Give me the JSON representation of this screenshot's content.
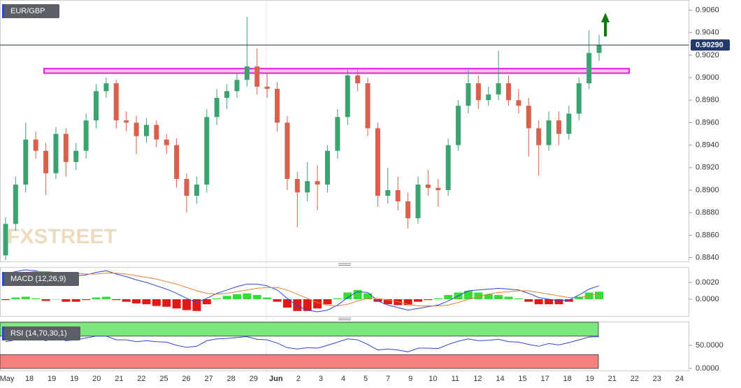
{
  "chart_data": [
    {
      "type": "candlestick",
      "title": "EUR/GBP",
      "watermark": "FXSTREET",
      "up_color": "#3aa36f",
      "down_color": "#d9604c",
      "ylim": [
        0.8836,
        0.9069
      ],
      "yticks": [
        {
          "value": 0.906,
          "label": "0.9060"
        },
        {
          "value": 0.904,
          "label": "0.9040"
        },
        {
          "value": 0.902,
          "label": "0.9020"
        },
        {
          "value": 0.9,
          "label": "0.9000"
        },
        {
          "value": 0.898,
          "label": "0.8980"
        },
        {
          "value": 0.896,
          "label": "0.8960"
        },
        {
          "value": 0.894,
          "label": "0.8940"
        },
        {
          "value": 0.892,
          "label": "0.8920"
        },
        {
          "value": 0.89,
          "label": "0.8900"
        },
        {
          "value": 0.888,
          "label": "0.8880"
        },
        {
          "value": 0.886,
          "label": "0.8860"
        },
        {
          "value": 0.884,
          "label": "0.8840"
        }
      ],
      "xtick_labels": [
        "May",
        "18",
        "19",
        "19",
        "20",
        "21",
        "22",
        "25",
        "26",
        "27",
        "28",
        "29",
        "Jun",
        "2",
        "3",
        "4",
        "5",
        "7",
        "9",
        "10",
        "11",
        "12",
        "14",
        "15",
        "17",
        "18",
        "19",
        "21",
        "22",
        "23",
        "24"
      ],
      "last_price": {
        "value": 0.9029,
        "label": "0.90290"
      },
      "resistance_zone": [
        0.9004,
        0.9008
      ],
      "open": [
        0.8842,
        0.887,
        0.8905,
        0.8945,
        0.8935,
        0.8915,
        0.895,
        0.8925,
        0.8935,
        0.8962,
        0.8988,
        0.8995,
        0.8962,
        0.896,
        0.8948,
        0.8958,
        0.8945,
        0.894,
        0.891,
        0.8895,
        0.8905,
        0.8965,
        0.8982,
        0.8988,
        0.8998,
        0.901,
        0.8992,
        0.899,
        0.896,
        0.891,
        0.8898,
        0.8908,
        0.8905,
        0.8935,
        0.8965,
        0.9002,
        0.8995,
        0.8955,
        0.8895,
        0.89,
        0.889,
        0.8875,
        0.8905,
        0.8902,
        0.89,
        0.894,
        0.8975,
        0.8995,
        0.898,
        0.8985,
        0.8995,
        0.898,
        0.8975,
        0.8955,
        0.894,
        0.8962,
        0.895,
        0.8968,
        0.8995,
        0.9022
      ],
      "high": [
        0.8876,
        0.8912,
        0.896,
        0.8952,
        0.8942,
        0.8956,
        0.8955,
        0.8942,
        0.8968,
        0.8994,
        0.9,
        0.8998,
        0.897,
        0.8966,
        0.8964,
        0.8962,
        0.895,
        0.8946,
        0.8915,
        0.8912,
        0.8972,
        0.899,
        0.8994,
        0.9004,
        0.9054,
        0.9026,
        0.9004,
        0.8996,
        0.8966,
        0.8916,
        0.8925,
        0.8922,
        0.894,
        0.8972,
        0.9008,
        0.9008,
        0.9,
        0.896,
        0.892,
        0.8912,
        0.8898,
        0.8912,
        0.8918,
        0.891,
        0.8946,
        0.898,
        0.9008,
        0.9002,
        0.8992,
        0.9024,
        0.9002,
        0.899,
        0.8982,
        0.8962,
        0.897,
        0.897,
        0.8975,
        0.9,
        0.9042,
        0.9038
      ],
      "low": [
        0.8838,
        0.8864,
        0.8898,
        0.8928,
        0.8896,
        0.891,
        0.8912,
        0.8918,
        0.8928,
        0.8955,
        0.8982,
        0.8955,
        0.8952,
        0.8932,
        0.8942,
        0.8938,
        0.8932,
        0.8902,
        0.888,
        0.8888,
        0.8898,
        0.8958,
        0.8972,
        0.8982,
        0.8992,
        0.8985,
        0.8982,
        0.8952,
        0.89,
        0.8867,
        0.889,
        0.8882,
        0.8898,
        0.8928,
        0.8958,
        0.8988,
        0.8948,
        0.8885,
        0.8888,
        0.8882,
        0.8866,
        0.887,
        0.8895,
        0.8885,
        0.8895,
        0.8935,
        0.8968,
        0.8972,
        0.8975,
        0.898,
        0.8975,
        0.8968,
        0.893,
        0.8913,
        0.8935,
        0.894,
        0.8945,
        0.8962,
        0.899,
        0.9015
      ],
      "close": [
        0.887,
        0.8905,
        0.8945,
        0.8935,
        0.8915,
        0.895,
        0.8925,
        0.8935,
        0.8962,
        0.8988,
        0.8995,
        0.8962,
        0.896,
        0.8948,
        0.8958,
        0.8945,
        0.894,
        0.891,
        0.8895,
        0.8905,
        0.8965,
        0.8982,
        0.8988,
        0.8998,
        0.901,
        0.8992,
        0.899,
        0.896,
        0.891,
        0.8898,
        0.8908,
        0.8905,
        0.8935,
        0.8965,
        0.9002,
        0.8995,
        0.8955,
        0.8895,
        0.89,
        0.889,
        0.8875,
        0.8905,
        0.8902,
        0.89,
        0.894,
        0.8975,
        0.8995,
        0.898,
        0.8985,
        0.8995,
        0.898,
        0.8975,
        0.8955,
        0.894,
        0.8962,
        0.895,
        0.8968,
        0.8995,
        0.9022,
        0.9029
      ]
    },
    {
      "type": "macd",
      "title": "MACD (12,26,9)",
      "ylim": [
        -0.002,
        0.00375
      ],
      "yticks": [
        {
          "value": 0.002,
          "label": "0.0020"
        },
        {
          "value": 0,
          "label": "0.0000"
        }
      ],
      "series": [
        {
          "name": "MACD",
          "color": "#2b45d6",
          "values": [
            0.003,
            0.0033,
            0.0035,
            0.0034,
            0.0031,
            0.0032,
            0.0029,
            0.0028,
            0.0029,
            0.0032,
            0.0034,
            0.003,
            0.0027,
            0.0023,
            0.002,
            0.0016,
            0.0012,
            0.0007,
            0.0001,
            -0.0004,
            0.0001,
            0.0007,
            0.0011,
            0.0015,
            0.0018,
            0.0018,
            0.0016,
            0.0011,
            0.0001,
            -0.0008,
            -0.0013,
            -0.0015,
            -0.0013,
            -0.0007,
            0.0002,
            0.0009,
            0.0008,
            -0.0002,
            -0.0007,
            -0.001,
            -0.0013,
            -0.0011,
            -0.0009,
            -0.0007,
            -0.0002,
            0.0004,
            0.001,
            0.0011,
            0.0012,
            0.0013,
            0.0012,
            0.0011,
            0.0007,
            0.0002,
            0.0,
            -0.0002,
            -0.0001,
            0.0005,
            0.0012,
            0.0016
          ]
        },
        {
          "name": "Signal",
          "color": "#f07a2a",
          "values": [
            0.0031,
            0.0031,
            0.0032,
            0.0033,
            0.0033,
            0.0032,
            0.0032,
            0.0031,
            0.003,
            0.003,
            0.0031,
            0.0031,
            0.003,
            0.0028,
            0.0026,
            0.0024,
            0.0021,
            0.0018,
            0.0014,
            0.001,
            0.0007,
            0.0006,
            0.0007,
            0.0009,
            0.0011,
            0.0013,
            0.0014,
            0.0014,
            0.0011,
            0.0006,
            0.0001,
            -0.0004,
            -0.0007,
            -0.0008,
            -0.0006,
            -0.0002,
            0.0001,
            0.0001,
            -0.0001,
            -0.0003,
            -0.0006,
            -0.0008,
            -0.0008,
            -0.0008,
            -0.0007,
            -0.0004,
            0.0,
            0.0003,
            0.0006,
            0.0008,
            0.0009,
            0.001,
            0.001,
            0.0008,
            0.0006,
            0.0004,
            0.0002,
            0.0002,
            0.0004,
            0.0007
          ]
        }
      ],
      "histogram": {
        "up_color": "#35dd35",
        "down_color": "#e01818",
        "values": [
          -0.0001,
          0.0002,
          0.0003,
          0.0001,
          -0.0002,
          0.0,
          -0.0003,
          -0.0003,
          -0.0001,
          0.0002,
          0.0003,
          -0.0001,
          -0.0003,
          -0.0005,
          -0.0006,
          -0.0008,
          -0.0009,
          -0.0011,
          -0.0013,
          -0.0014,
          -0.0006,
          0.0001,
          0.0004,
          0.0006,
          0.0007,
          0.0005,
          0.0002,
          -0.0003,
          -0.001,
          -0.0014,
          -0.0014,
          -0.0011,
          -0.0006,
          0.0001,
          0.0008,
          0.0011,
          0.0007,
          -0.0003,
          -0.0006,
          -0.0007,
          -0.0007,
          -0.0003,
          -0.0001,
          0.0001,
          0.0005,
          0.0008,
          0.001,
          0.0008,
          0.0006,
          0.0005,
          0.0003,
          0.0001,
          -0.0003,
          -0.0006,
          -0.0006,
          -0.0006,
          -0.0003,
          0.0003,
          0.0008,
          0.0009
        ]
      }
    },
    {
      "type": "line",
      "title": "RSI (14,70,30,1)",
      "ylim": [
        -4.5,
        100
      ],
      "yticks": [
        {
          "value": 50,
          "label": "50.0000"
        },
        {
          "value": 0,
          "label": "0.0000"
        }
      ],
      "overbought": [
        70,
        100
      ],
      "oversold": [
        0,
        30
      ],
      "overbought_color": "#7ee87e",
      "oversold_color": "#f58080",
      "series": [
        {
          "name": "RSI",
          "color": "#2b45d6",
          "values": [
            58,
            62,
            68,
            66,
            60,
            66,
            60,
            62,
            66,
            70,
            70,
            62,
            62,
            58,
            60,
            58,
            57,
            50,
            46,
            48,
            60,
            64,
            65,
            67,
            69,
            63,
            62,
            55,
            45,
            42,
            45,
            44,
            50,
            57,
            64,
            62,
            52,
            40,
            42,
            40,
            36,
            44,
            44,
            43,
            52,
            59,
            64,
            60,
            61,
            63,
            58,
            57,
            52,
            48,
            54,
            51,
            56,
            62,
            68,
            69
          ]
        }
      ]
    }
  ]
}
